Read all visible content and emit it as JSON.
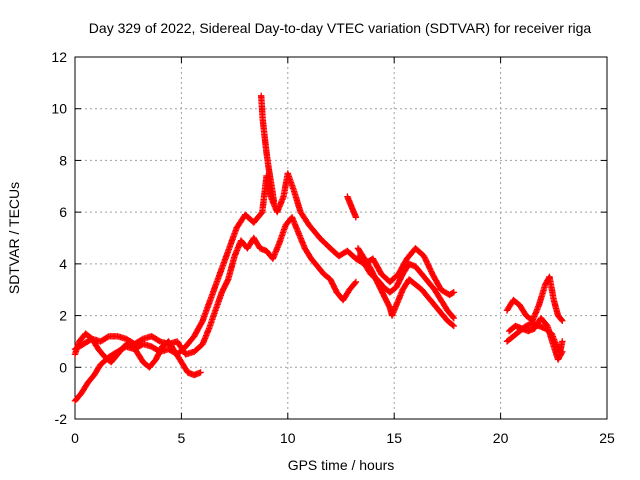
{
  "chart_data": {
    "type": "scatter",
    "title": "Day 329 of 2022, Sidereal Day-to-day VTEC variation (SDTVAR) for receiver riga",
    "xlabel": "GPS time / hours",
    "ylabel": "SDTVAR / TECUs",
    "xlim": [
      0,
      25
    ],
    "ylim": [
      -2,
      12
    ],
    "xticks": [
      0,
      5,
      10,
      15,
      20,
      25
    ],
    "yticks": [
      -2,
      0,
      2,
      4,
      6,
      8,
      10,
      12
    ],
    "xtick_labels": [
      "0",
      "5",
      "10",
      "15",
      "20",
      "25"
    ],
    "ytick_labels": [
      "-2",
      "0",
      "2",
      "4",
      "6",
      "8",
      "10",
      "12"
    ],
    "grid": true,
    "marker": "plus",
    "series": [
      {
        "name": "SDTVAR",
        "color": "#ff0000",
        "tracks": [
          {
            "points": [
              [
                0.0,
                -1.3
              ],
              [
                0.3,
                -1.0
              ],
              [
                0.6,
                -0.6
              ],
              [
                0.9,
                -0.3
              ],
              [
                1.2,
                0.1
              ],
              [
                1.6,
                0.4
              ],
              [
                2.0,
                0.6
              ],
              [
                2.4,
                0.8
              ],
              [
                2.8,
                0.7
              ],
              [
                3.2,
                0.9
              ],
              [
                3.6,
                0.8
              ],
              [
                4.0,
                0.6
              ],
              [
                4.4,
                0.7
              ],
              [
                4.8,
                0.5
              ],
              [
                5.2,
                0.8
              ],
              [
                5.6,
                1.2
              ],
              [
                6.0,
                1.8
              ],
              [
                6.4,
                2.7
              ],
              [
                6.8,
                3.6
              ],
              [
                7.2,
                4.5
              ],
              [
                7.6,
                5.4
              ],
              [
                8.0,
                5.9
              ],
              [
                8.4,
                5.6
              ],
              [
                8.8,
                6.0
              ],
              [
                9.0,
                7.4
              ],
              [
                9.2,
                6.6
              ],
              [
                9.5,
                6.0
              ],
              [
                9.8,
                6.6
              ],
              [
                10.0,
                7.5
              ],
              [
                10.3,
                6.8
              ],
              [
                10.6,
                6.0
              ],
              [
                11.0,
                5.5
              ],
              [
                11.5,
                5.0
              ],
              [
                12.0,
                4.6
              ],
              [
                12.4,
                4.3
              ],
              [
                12.8,
                4.5
              ],
              [
                13.2,
                4.2
              ],
              [
                13.6,
                4.0
              ],
              [
                14.0,
                4.2
              ],
              [
                14.4,
                3.6
              ],
              [
                14.8,
                3.3
              ],
              [
                15.2,
                3.6
              ],
              [
                15.6,
                4.2
              ],
              [
                16.0,
                4.6
              ],
              [
                16.4,
                4.3
              ],
              [
                16.8,
                3.6
              ],
              [
                17.2,
                3.0
              ],
              [
                17.6,
                2.8
              ],
              [
                17.8,
                2.9
              ]
            ]
          },
          {
            "points": [
              [
                0.0,
                0.5
              ],
              [
                0.2,
                1.0
              ],
              [
                0.5,
                1.3
              ],
              [
                0.8,
                1.1
              ],
              [
                1.1,
                0.7
              ],
              [
                1.4,
                0.4
              ],
              [
                1.7,
                0.2
              ],
              [
                2.0,
                0.5
              ],
              [
                2.3,
                0.8
              ],
              [
                2.6,
                1.0
              ],
              [
                2.9,
                0.6
              ],
              [
                3.2,
                0.2
              ],
              [
                3.5,
                0.0
              ],
              [
                3.8,
                0.3
              ],
              [
                4.1,
                0.8
              ],
              [
                4.4,
                1.0
              ],
              [
                4.7,
                0.6
              ],
              [
                5.0,
                0.2
              ],
              [
                5.3,
                -0.2
              ],
              [
                5.6,
                -0.3
              ],
              [
                5.9,
                -0.2
              ]
            ]
          },
          {
            "points": [
              [
                0.0,
                0.7
              ],
              [
                0.4,
                0.9
              ],
              [
                0.8,
                1.1
              ],
              [
                1.2,
                1.0
              ],
              [
                1.6,
                1.2
              ],
              [
                2.0,
                1.2
              ],
              [
                2.4,
                1.1
              ],
              [
                2.8,
                0.9
              ],
              [
                3.2,
                1.1
              ],
              [
                3.6,
                1.2
              ],
              [
                4.0,
                1.0
              ],
              [
                4.4,
                0.9
              ],
              [
                4.8,
                1.0
              ],
              [
                5.2,
                0.5
              ],
              [
                5.6,
                0.6
              ],
              [
                6.0,
                0.9
              ],
              [
                6.3,
                1.5
              ],
              [
                6.6,
                2.2
              ],
              [
                6.9,
                2.9
              ],
              [
                7.2,
                3.4
              ],
              [
                7.5,
                4.3
              ],
              [
                7.8,
                4.9
              ],
              [
                8.1,
                4.6
              ],
              [
                8.4,
                5.0
              ],
              [
                8.7,
                4.6
              ],
              [
                9.0,
                4.5
              ],
              [
                9.3,
                4.2
              ],
              [
                9.6,
                4.8
              ],
              [
                9.9,
                5.5
              ],
              [
                10.2,
                5.8
              ],
              [
                10.5,
                5.2
              ],
              [
                10.8,
                4.6
              ],
              [
                11.1,
                4.2
              ],
              [
                11.4,
                3.9
              ],
              [
                11.7,
                3.6
              ],
              [
                12.0,
                3.4
              ],
              [
                12.3,
                2.9
              ],
              [
                12.6,
                2.6
              ],
              [
                12.9,
                3.0
              ],
              [
                13.2,
                3.3
              ]
            ]
          },
          {
            "points": [
              [
                8.75,
                10.5
              ],
              [
                8.82,
                9.6
              ],
              [
                8.9,
                9.0
              ],
              [
                8.97,
                8.5
              ],
              [
                9.05,
                8.0
              ],
              [
                9.12,
                7.6
              ],
              [
                9.2,
                7.2
              ],
              [
                9.28,
                6.8
              ],
              [
                9.35,
                6.4
              ]
            ]
          },
          {
            "points": [
              [
                12.8,
                6.6
              ],
              [
                12.9,
                6.4
              ],
              [
                13.0,
                6.2
              ],
              [
                13.1,
                6.0
              ],
              [
                13.2,
                5.8
              ]
            ]
          },
          {
            "points": [
              [
                13.3,
                4.6
              ],
              [
                13.6,
                4.2
              ],
              [
                13.9,
                3.8
              ],
              [
                14.2,
                3.3
              ],
              [
                14.5,
                2.8
              ],
              [
                14.8,
                2.3
              ],
              [
                14.9,
                2.0
              ],
              [
                15.1,
                2.4
              ],
              [
                15.4,
                3.0
              ],
              [
                15.7,
                3.4
              ],
              [
                16.0,
                3.2
              ],
              [
                16.3,
                3.0
              ],
              [
                16.6,
                2.7
              ],
              [
                16.9,
                2.4
              ],
              [
                17.2,
                2.1
              ],
              [
                17.5,
                1.8
              ],
              [
                17.8,
                1.6
              ]
            ]
          },
          {
            "points": [
              [
                13.3,
                4.3
              ],
              [
                13.6,
                4.0
              ],
              [
                13.9,
                3.6
              ],
              [
                14.2,
                3.4
              ],
              [
                14.5,
                3.1
              ],
              [
                14.8,
                2.9
              ],
              [
                15.1,
                3.1
              ],
              [
                15.4,
                3.6
              ],
              [
                15.7,
                4.0
              ],
              [
                16.0,
                3.9
              ],
              [
                16.3,
                3.6
              ],
              [
                16.6,
                3.3
              ],
              [
                16.9,
                3.0
              ],
              [
                17.2,
                2.6
              ],
              [
                17.5,
                2.2
              ],
              [
                17.8,
                1.9
              ]
            ]
          },
          {
            "points": [
              [
                20.3,
                2.2
              ],
              [
                20.6,
                2.6
              ],
              [
                20.9,
                2.4
              ],
              [
                21.2,
                2.0
              ],
              [
                21.5,
                1.8
              ],
              [
                21.8,
                2.4
              ],
              [
                22.1,
                3.2
              ],
              [
                22.3,
                3.5
              ],
              [
                22.5,
                2.6
              ],
              [
                22.7,
                2.0
              ],
              [
                22.9,
                1.8
              ]
            ]
          },
          {
            "points": [
              [
                20.3,
                1.0
              ],
              [
                20.6,
                1.2
              ],
              [
                20.9,
                1.4
              ],
              [
                21.2,
                1.6
              ],
              [
                21.5,
                1.7
              ],
              [
                21.8,
                1.6
              ],
              [
                22.1,
                1.5
              ],
              [
                22.4,
                1.3
              ],
              [
                22.6,
                0.9
              ],
              [
                22.8,
                0.6
              ],
              [
                22.9,
                1.0
              ]
            ]
          },
          {
            "points": [
              [
                20.4,
                1.4
              ],
              [
                20.7,
                1.6
              ],
              [
                21.0,
                1.5
              ],
              [
                21.3,
                1.4
              ],
              [
                21.6,
                1.5
              ],
              [
                21.9,
                1.9
              ],
              [
                22.2,
                1.6
              ],
              [
                22.5,
                0.8
              ],
              [
                22.7,
                0.3
              ],
              [
                22.9,
                0.6
              ]
            ]
          }
        ]
      }
    ]
  }
}
